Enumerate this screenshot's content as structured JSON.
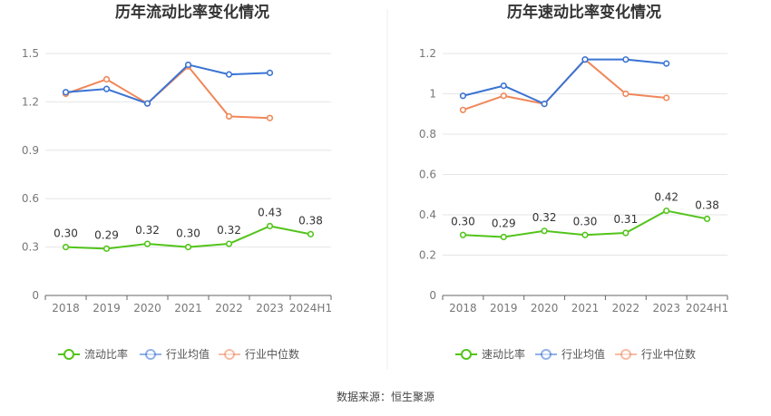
{
  "source_text": "数据来源：恒生聚源",
  "chart_data": [
    {
      "type": "line",
      "title": "历年流动比率变化情况",
      "categories": [
        "2018",
        "2019",
        "2020",
        "2021",
        "2022",
        "2023",
        "2024H1"
      ],
      "ylim": [
        0,
        1.5
      ],
      "yticks": [
        "0",
        "0.3",
        "0.6",
        "0.9",
        "1.2",
        "1.5"
      ],
      "ytick_values": [
        0,
        0.3,
        0.6,
        0.9,
        1.2,
        1.5
      ],
      "grid": true,
      "legend_position": "bottom",
      "series": [
        {
          "name": "流动比率",
          "color": "#52c41a",
          "values": [
            0.3,
            0.29,
            0.32,
            0.3,
            0.32,
            0.43,
            0.38
          ],
          "labels": [
            "0.30",
            "0.29",
            "0.32",
            "0.30",
            "0.32",
            "0.43",
            "0.38"
          ]
        },
        {
          "name": "行业均值",
          "color": "#3a73d4",
          "values": [
            1.26,
            1.28,
            1.19,
            1.43,
            1.37,
            1.38,
            null
          ]
        },
        {
          "name": "行业中位数",
          "color": "#f0875a",
          "values": [
            1.25,
            1.34,
            1.19,
            1.42,
            1.11,
            1.1,
            null
          ]
        }
      ]
    },
    {
      "type": "line",
      "title": "历年速动比率变化情况",
      "categories": [
        "2018",
        "2019",
        "2020",
        "2021",
        "2022",
        "2023",
        "2024H1"
      ],
      "ylim": [
        0,
        1.2
      ],
      "yticks": [
        "0",
        "0.2",
        "0.4",
        "0.6",
        "0.8",
        "1",
        "1.2"
      ],
      "ytick_values": [
        0,
        0.2,
        0.4,
        0.6,
        0.8,
        1.0,
        1.2
      ],
      "grid": true,
      "legend_position": "bottom",
      "series": [
        {
          "name": "速动比率",
          "color": "#52c41a",
          "values": [
            0.3,
            0.29,
            0.32,
            0.3,
            0.31,
            0.42,
            0.38
          ],
          "labels": [
            "0.30",
            "0.29",
            "0.32",
            "0.30",
            "0.31",
            "0.42",
            "0.38"
          ]
        },
        {
          "name": "行业均值",
          "color": "#3a73d4",
          "values": [
            0.99,
            1.04,
            0.95,
            1.17,
            1.17,
            1.15,
            null
          ]
        },
        {
          "name": "行业中位数",
          "color": "#f0875a",
          "values": [
            0.92,
            0.99,
            0.95,
            1.17,
            1.0,
            0.98,
            null
          ]
        }
      ]
    }
  ]
}
